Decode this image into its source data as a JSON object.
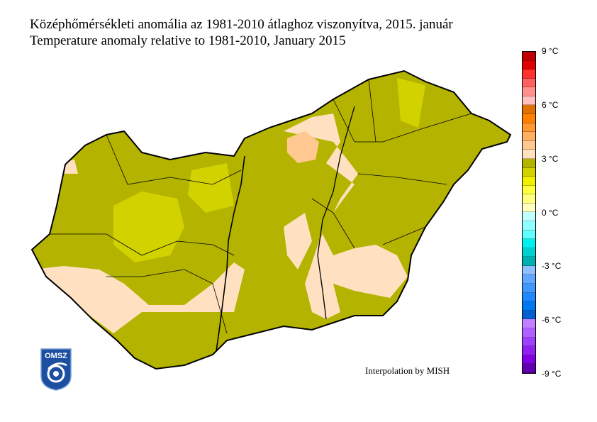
{
  "title_hu": "Középhőmérsékleti anomália az 1981-2010 átlaghoz viszonyítva, 2015. január",
  "title_en": "Temperature anomaly relative to 1981-2010, January 2015",
  "credit": "Interpolation by MISH",
  "logo_text": "OMSZ",
  "legend": {
    "unit": "°C",
    "range": [
      -9,
      9
    ],
    "step": 0.5,
    "tick_labels": [
      "9 °C",
      "6 °C",
      "3 °C",
      "0 °C",
      "-3 °C",
      "-6 °C",
      "-9 °C"
    ],
    "colors_top_to_bottom": [
      "#c00000",
      "#e00000",
      "#ff3030",
      "#ff6060",
      "#ff9090",
      "#ffc0c0",
      "#e07000",
      "#ff8000",
      "#ff9830",
      "#ffb060",
      "#ffc890",
      "#ffe0c0",
      "#b4b400",
      "#d2d200",
      "#f0f000",
      "#ffff40",
      "#ffff80",
      "#ffffc0",
      "#c0ffff",
      "#90ffff",
      "#60ffff",
      "#00f0f0",
      "#00d0d0",
      "#00b0b0",
      "#90c0ff",
      "#60a8ff",
      "#4098ff",
      "#2088ff",
      "#0078f0",
      "#0060d0",
      "#c080ff",
      "#b060ff",
      "#a040ff",
      "#9020f0",
      "#8000e0",
      "#6000b0"
    ]
  },
  "map_colors": {
    "dominant": "#b4b400",
    "warm": "#ffe0c0",
    "warmer": "#ffc890",
    "cooler": "#d2d200"
  }
}
